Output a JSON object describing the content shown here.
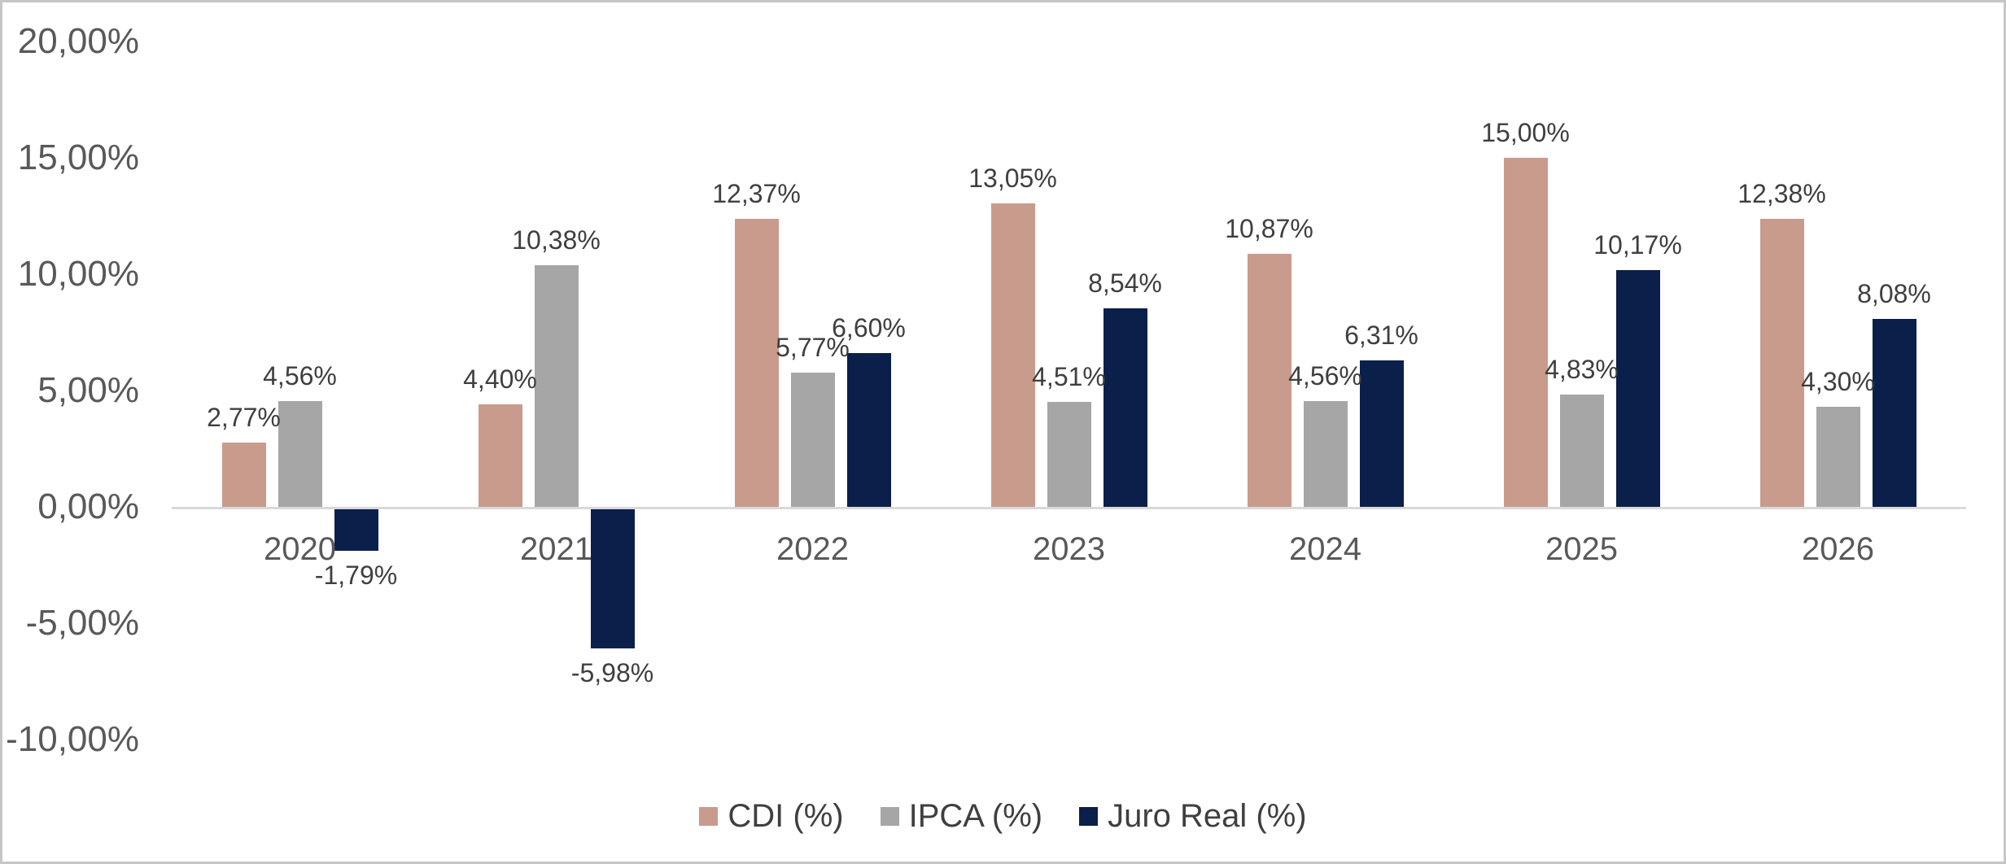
{
  "chart_data": {
    "type": "bar",
    "title": "",
    "categories": [
      "2020",
      "2021",
      "2022",
      "2023",
      "2024",
      "2025",
      "2026"
    ],
    "series": [
      {
        "name": "CDI (%)",
        "color": "#C99B8D",
        "values": [
          2.77,
          4.4,
          12.37,
          13.05,
          10.87,
          15.0,
          12.38
        ],
        "value_labels": [
          "2,77%",
          "4,40%",
          "12,37%",
          "13,05%",
          "10,87%",
          "15,00%",
          "12,38%"
        ]
      },
      {
        "name": "IPCA (%)",
        "color": "#A6A6A6",
        "values": [
          4.56,
          10.38,
          5.77,
          4.51,
          4.56,
          4.83,
          4.3
        ],
        "value_labels": [
          "4,56%",
          "10,38%",
          "5,77%",
          "4,51%",
          "4,56%",
          "4,83%",
          "4,30%"
        ]
      },
      {
        "name": "Juro Real (%)",
        "color": "#0B1F4B",
        "values": [
          -1.79,
          -5.98,
          6.6,
          8.54,
          6.31,
          10.17,
          8.08
        ],
        "value_labels": [
          "-1,79%",
          "-5,98%",
          "6,60%",
          "8,54%",
          "6,31%",
          "10,17%",
          "8,08%"
        ]
      }
    ],
    "y_axis": {
      "min": -10,
      "max": 20,
      "step": 5,
      "tick_labels": [
        "20,00%",
        "15,00%",
        "10,00%",
        "5,00%",
        "0,00%",
        "-5,00%",
        "-10,00%"
      ]
    },
    "legend_position": "bottom",
    "grid": false,
    "style_colors": {
      "background": "#FFFFFF",
      "border": "#C6C6C6",
      "axis_line": "#D9D9D9",
      "tick_text": "#595959",
      "category_text": "#595959",
      "data_label_text": "#3F3F3F",
      "legend_text": "#3F3F3F"
    }
  }
}
